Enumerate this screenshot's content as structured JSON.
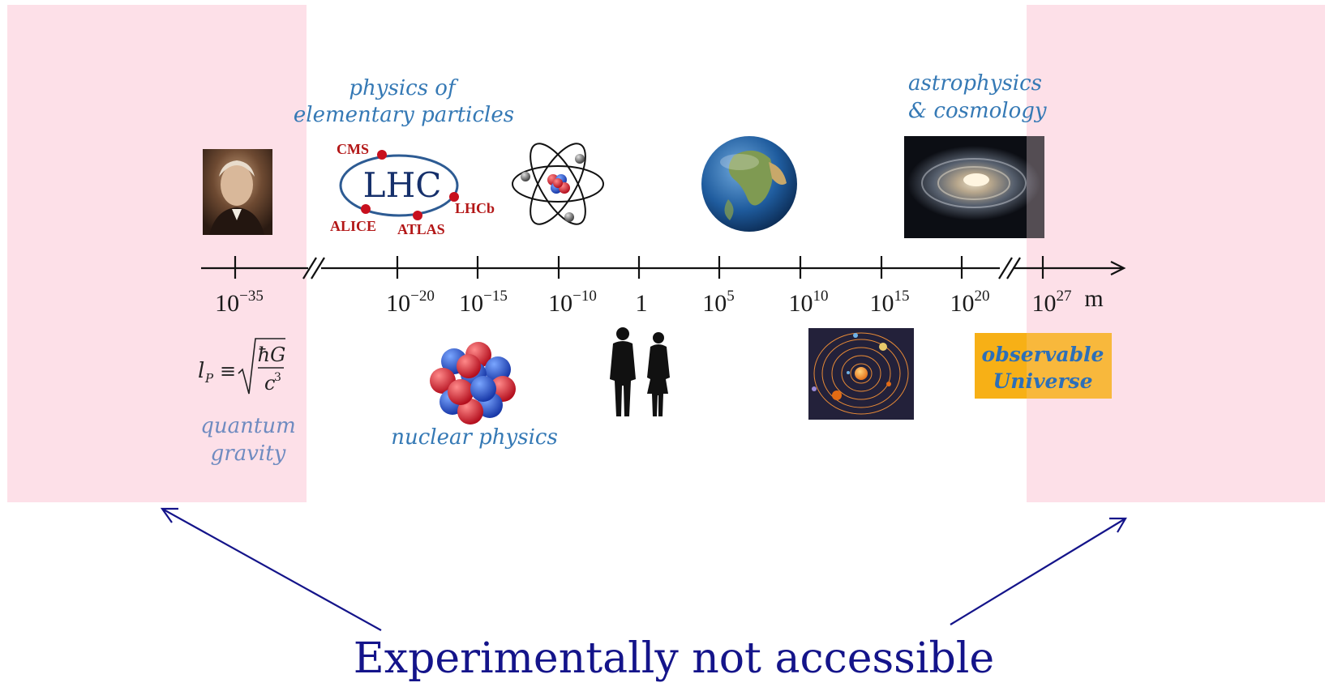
{
  "colors": {
    "inaccessible_zone": "#fde0e8",
    "label_blue": "#3579b5",
    "lhc_red": "#b31717",
    "lhc_navy": "#16306b",
    "arrow_navy": "#14148a",
    "universe_box": "#f7b016"
  },
  "labels": {
    "elementary_line1": "physics of",
    "elementary_line2": "elementary particles",
    "astro_line1": "astrophysics",
    "astro_line2": "& cosmology",
    "nuclear": "nuclear physics",
    "quantum_line1": "quantum",
    "quantum_line2": "gravity",
    "observable_line1": "observable",
    "observable_line2": "Universe",
    "experimentally_not_accessible": "Experimentally not accessible"
  },
  "lhc": {
    "title": "LHC",
    "experiments": [
      "CMS",
      "LHCb",
      "ATLAS",
      "ALICE"
    ]
  },
  "planck_formula": {
    "lhs": "l",
    "sub": "P",
    "equiv": "≡",
    "num": "ħG",
    "den_base": "c",
    "den_exp": "3"
  },
  "axis": {
    "unit": "m",
    "ticks": [
      {
        "base": "10",
        "exp": "−35"
      },
      {
        "base": "10",
        "exp": "−20"
      },
      {
        "base": "10",
        "exp": "−15"
      },
      {
        "base": "10",
        "exp": "−10"
      },
      {
        "base": "1",
        "exp": ""
      },
      {
        "base": "10",
        "exp": "5"
      },
      {
        "base": "10",
        "exp": "10"
      },
      {
        "base": "10",
        "exp": "15"
      },
      {
        "base": "10",
        "exp": "20"
      },
      {
        "base": "10",
        "exp": "27"
      }
    ]
  },
  "icons": {
    "planck": "planck-portrait-icon",
    "atom": "atom-icon",
    "nucleus": "nucleus-icon",
    "earth": "earth-icon",
    "humans": "humans-silhouette-icon",
    "solar_system": "solar-system-icon",
    "galaxy": "galaxy-icon"
  }
}
